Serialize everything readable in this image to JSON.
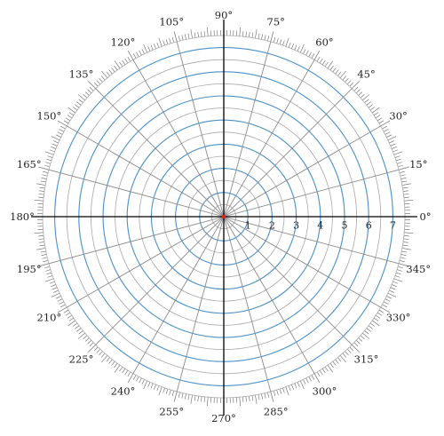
{
  "grid": {
    "angle_labels": [
      "0°",
      "15°",
      "30°",
      "45°",
      "60°",
      "75°",
      "90°",
      "105°",
      "120°",
      "135°",
      "150°",
      "165°",
      "180°",
      "195°",
      "210°",
      "225°",
      "240°",
      "255°",
      "270°",
      "285°",
      "300°",
      "315°",
      "330°",
      "345°"
    ],
    "angle_values": [
      0,
      15,
      30,
      45,
      60,
      75,
      90,
      105,
      120,
      135,
      150,
      165,
      180,
      195,
      210,
      225,
      240,
      255,
      270,
      285,
      300,
      315,
      330,
      345
    ],
    "radius_labels": [
      "1",
      "2",
      "3",
      "4",
      "5",
      "6",
      "7"
    ],
    "radius_values": [
      1,
      2,
      3,
      4,
      5,
      6,
      7
    ],
    "minor_ring_step": 0.5,
    "major_ring_step": 1,
    "max_radius": 7.5,
    "spoke_step_degrees": 15,
    "tick_step_degrees": 1,
    "colors": {
      "major_ring": "#4a90c8",
      "minor_ring": "#a8a8a8",
      "spoke": "#8a8a8a",
      "axis": "#000000",
      "ticks": "#666666",
      "origin": "#e02020"
    }
  }
}
